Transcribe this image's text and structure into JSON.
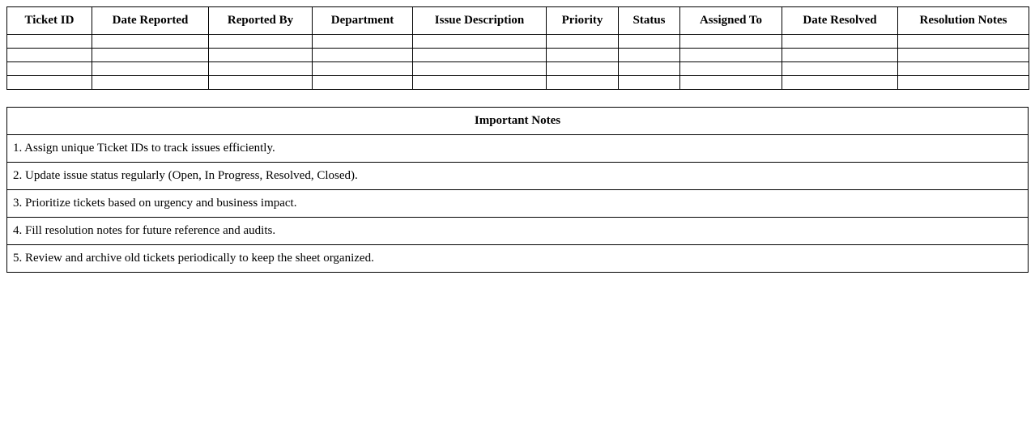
{
  "page": {
    "background_color": "#ffffff",
    "border_color": "#000000",
    "text_color": "#000000"
  },
  "ticket_table": {
    "headers": [
      "Ticket ID",
      "Date Reported",
      "Reported By",
      "Department",
      "Issue Description",
      "Priority",
      "Status",
      "Assigned To",
      "Date Resolved",
      "Resolution Notes"
    ],
    "empty_row_count": 4,
    "rows": [
      [
        "",
        "",
        "",
        "",
        "",
        "",
        "",
        "",
        "",
        ""
      ],
      [
        "",
        "",
        "",
        "",
        "",
        "",
        "",
        "",
        "",
        ""
      ],
      [
        "",
        "",
        "",
        "",
        "",
        "",
        "",
        "",
        "",
        ""
      ],
      [
        "",
        "",
        "",
        "",
        "",
        "",
        "",
        "",
        "",
        ""
      ]
    ]
  },
  "notes": {
    "title": "Important Notes",
    "items": [
      "1. Assign unique Ticket IDs to track issues efficiently.",
      "2. Update issue status regularly (Open, In Progress, Resolved, Closed).",
      "3. Prioritize tickets based on urgency and business impact.",
      "4. Fill resolution notes for future reference and audits.",
      "5. Review and archive old tickets periodically to keep the sheet organized."
    ]
  }
}
